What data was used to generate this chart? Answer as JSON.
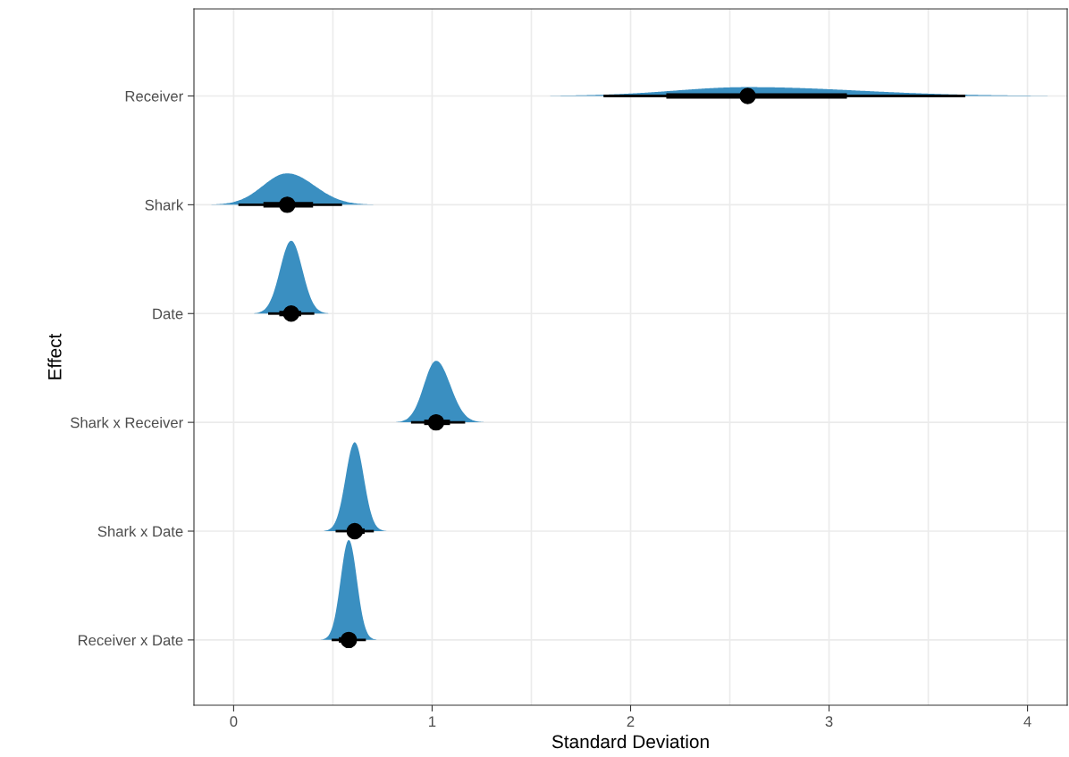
{
  "chart_data": {
    "type": "box",
    "orientation": "horizontal",
    "xlabel": "Standard Deviation",
    "ylabel": "Effect",
    "categories": [
      "Receiver",
      "Shark",
      "Date",
      "Shark x Receiver",
      "Shark x Date",
      "Receiver x Date"
    ],
    "color": "#000000",
    "boxes": [
      {
        "low": 1.87,
        "q1": 2.18,
        "median": 2.59,
        "q3": 3.09,
        "high": 3.68
      },
      {
        "low": 0.03,
        "q1": 0.15,
        "median": 0.27,
        "q3": 0.4,
        "high": 0.54
      },
      {
        "low": 0.18,
        "q1": 0.23,
        "median": 0.29,
        "q3": 0.34,
        "high": 0.4
      },
      {
        "low": 0.9,
        "q1": 0.96,
        "median": 1.02,
        "q3": 1.09,
        "high": 1.16
      },
      {
        "low": 0.52,
        "q1": 0.57,
        "median": 0.61,
        "q3": 0.66,
        "high": 0.7
      },
      {
        "low": 0.5,
        "q1": 0.53,
        "median": 0.58,
        "q3": 0.62,
        "high": 0.66
      }
    ],
    "xlim": [
      -0.2,
      4.2
    ],
    "xticks": [
      0,
      {
        "value": 0.5,
        "label": null
      },
      1,
      {
        "value": 1.5,
        "label": null
      },
      2,
      {
        "value": 2.5,
        "label": null
      },
      3,
      {
        "value": 3.5,
        "label": null
      },
      4
    ],
    "grid": true
  }
}
